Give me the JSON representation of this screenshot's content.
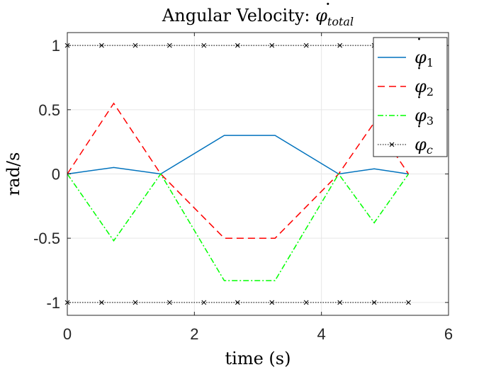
{
  "chart_data": {
    "type": "line",
    "title_prefix": "Angular Velocity: ",
    "title_symbol": "φ",
    "title_subscript": "total",
    "xlabel": "time (s)",
    "ylabel": "rad/s",
    "xlim": [
      0,
      6
    ],
    "ylim": [
      -1.1,
      1.1
    ],
    "xticks": [
      0,
      2,
      4,
      6
    ],
    "xtick_labels": [
      "0",
      "2",
      "4",
      "6"
    ],
    "yticks": [
      1,
      0.5,
      0,
      -0.5,
      -1
    ],
    "ytick_labels": [
      "1",
      "0.5",
      "0",
      "-0.5",
      "-1"
    ],
    "grid": true,
    "legend_position": "top-right",
    "series": [
      {
        "name": "φ",
        "subscript": "1",
        "color": "#0072BD",
        "dash": "",
        "marker": "",
        "x": [
          0,
          0.73,
          1.47,
          2.47,
          3.27,
          4.27,
          4.83,
          5.37
        ],
        "y": [
          0,
          0.05,
          0,
          0.3,
          0.3,
          0,
          0.04,
          0
        ]
      },
      {
        "name": "φ",
        "subscript": "2",
        "color": "#FF0000",
        "dash": "10,6",
        "marker": "",
        "x": [
          0,
          0.73,
          1.47,
          2.47,
          3.27,
          4.27,
          4.83,
          5.37
        ],
        "y": [
          0,
          0.55,
          0,
          -0.5,
          -0.5,
          0,
          0.4,
          0
        ]
      },
      {
        "name": "φ",
        "subscript": "3",
        "color": "#00FF00",
        "dash": "8,3,2,3",
        "marker": "",
        "x": [
          0,
          0.73,
          1.47,
          2.47,
          3.27,
          4.27,
          4.83,
          5.37
        ],
        "y": [
          0,
          -0.52,
          0,
          -0.83,
          -0.83,
          0,
          -0.38,
          0
        ]
      },
      {
        "name": "φ",
        "subscript": "c",
        "color": "#000000",
        "dash": "1.5,2",
        "marker": "x",
        "x": [
          0,
          0.54,
          1.07,
          1.61,
          2.15,
          2.68,
          3.22,
          3.76,
          4.29,
          4.83,
          5.37
        ],
        "y": [
          1,
          1,
          1,
          1,
          1,
          1,
          1,
          1,
          1,
          1,
          1
        ],
        "x_lower": [
          0,
          0.54,
          1.07,
          1.61,
          2.15,
          2.68,
          3.22,
          3.76,
          4.29,
          4.83,
          5.37
        ],
        "y_lower": [
          -1,
          -1,
          -1,
          -1,
          -1,
          -1,
          -1,
          -1,
          -1,
          -1,
          -1
        ]
      }
    ]
  }
}
